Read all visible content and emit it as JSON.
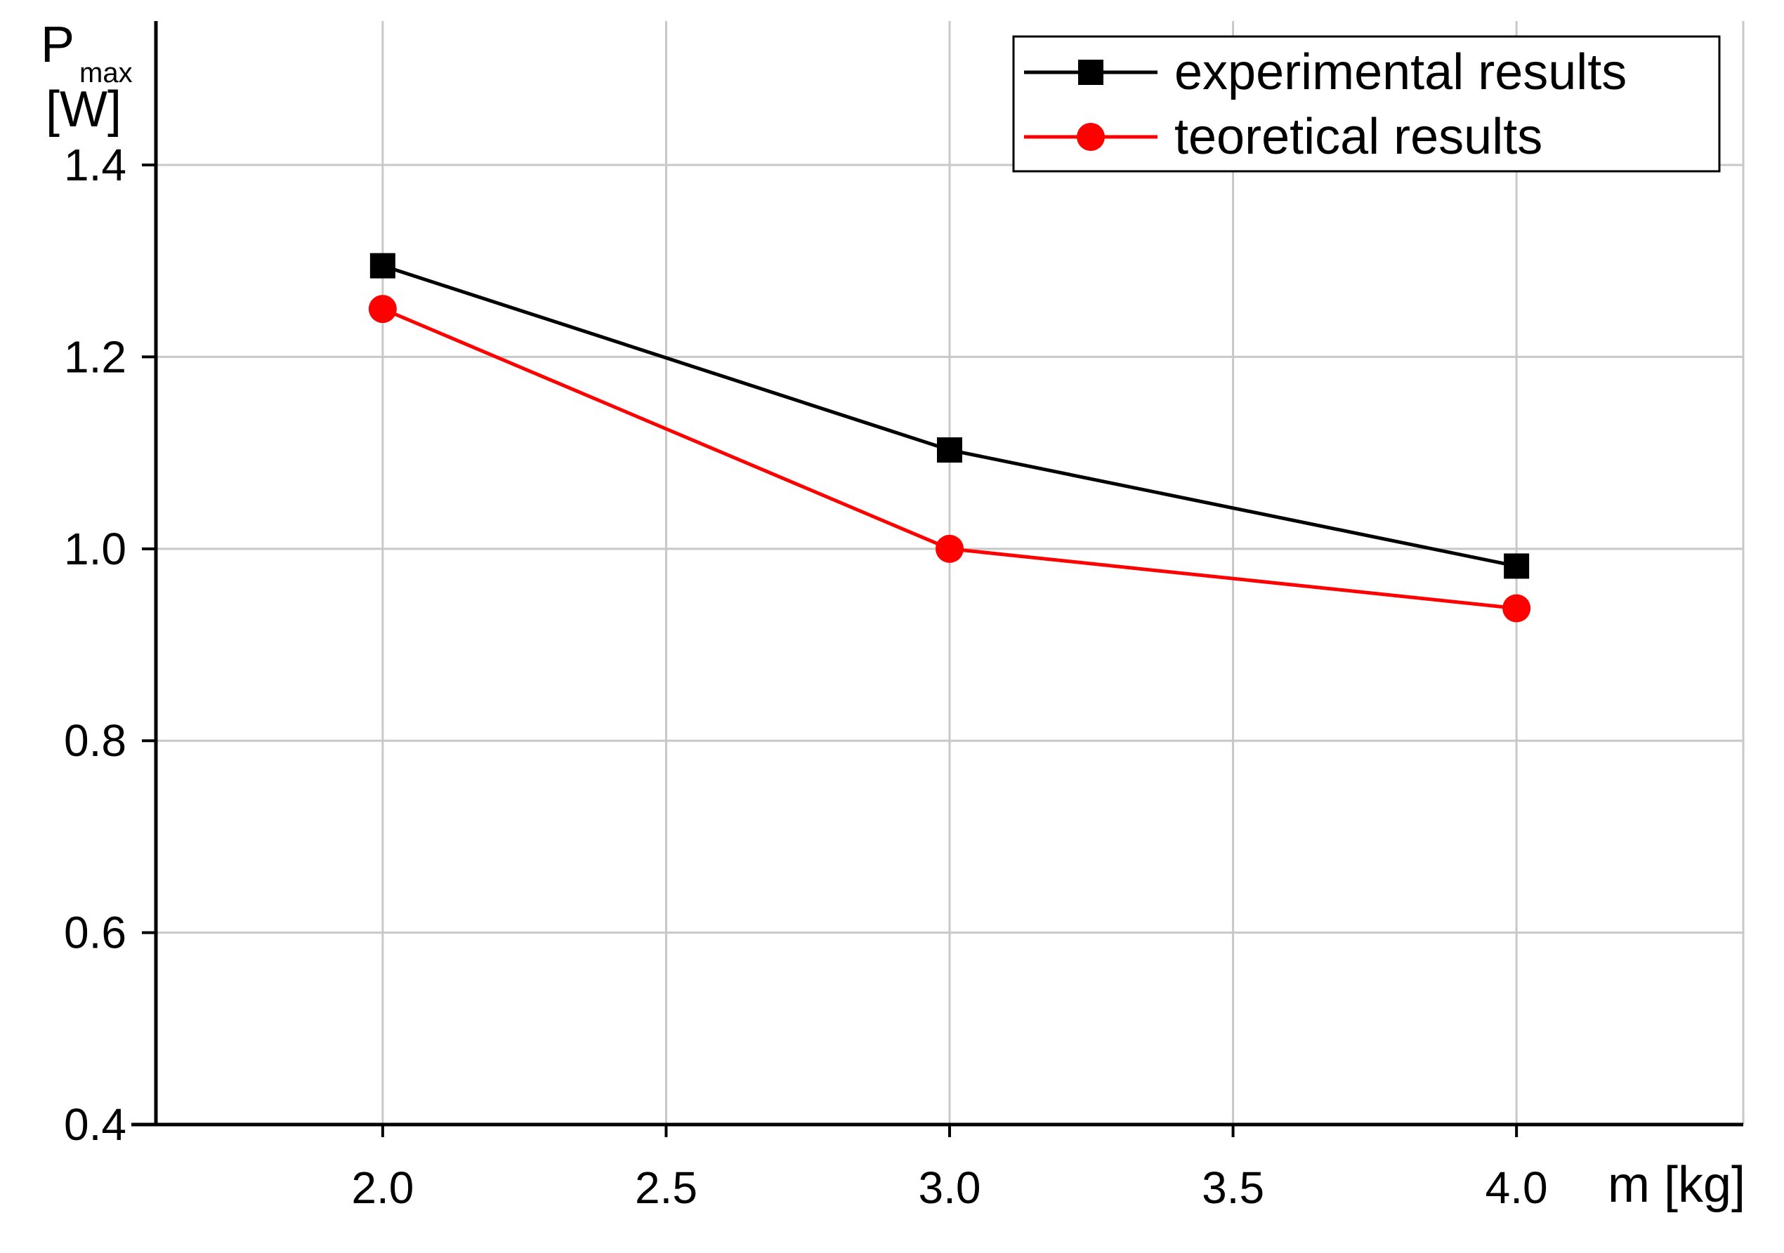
{
  "chart_data": {
    "type": "line",
    "xlabel": "m [kg]",
    "ylabel": {
      "main": "P",
      "subscript": "max",
      "unit": "[W]"
    },
    "xlim": [
      1.6,
      4.4
    ],
    "ylim": [
      0.4,
      1.55
    ],
    "xticks": [
      2.0,
      2.5,
      3.0,
      3.5,
      4.0
    ],
    "xtick_labels": [
      "2.0",
      "2.5",
      "3.0",
      "3.5",
      "4.0"
    ],
    "yticks": [
      0.4,
      0.6,
      0.8,
      1.0,
      1.2,
      1.4
    ],
    "ytick_labels": [
      "0.4",
      "0.6",
      "0.8",
      "1.0",
      "1.2",
      "1.4"
    ],
    "grid": true,
    "legend_position": "top-right",
    "series": [
      {
        "name": "experimental results",
        "marker": "square",
        "color": "#000000",
        "x": [
          2.0,
          3.0,
          4.0
        ],
        "y": [
          1.295,
          1.103,
          0.982
        ]
      },
      {
        "name": "teoretical results",
        "marker": "circle",
        "color": "#ff0000",
        "x": [
          2.0,
          3.0,
          4.0
        ],
        "y": [
          1.25,
          1.0,
          0.938
        ]
      }
    ]
  }
}
